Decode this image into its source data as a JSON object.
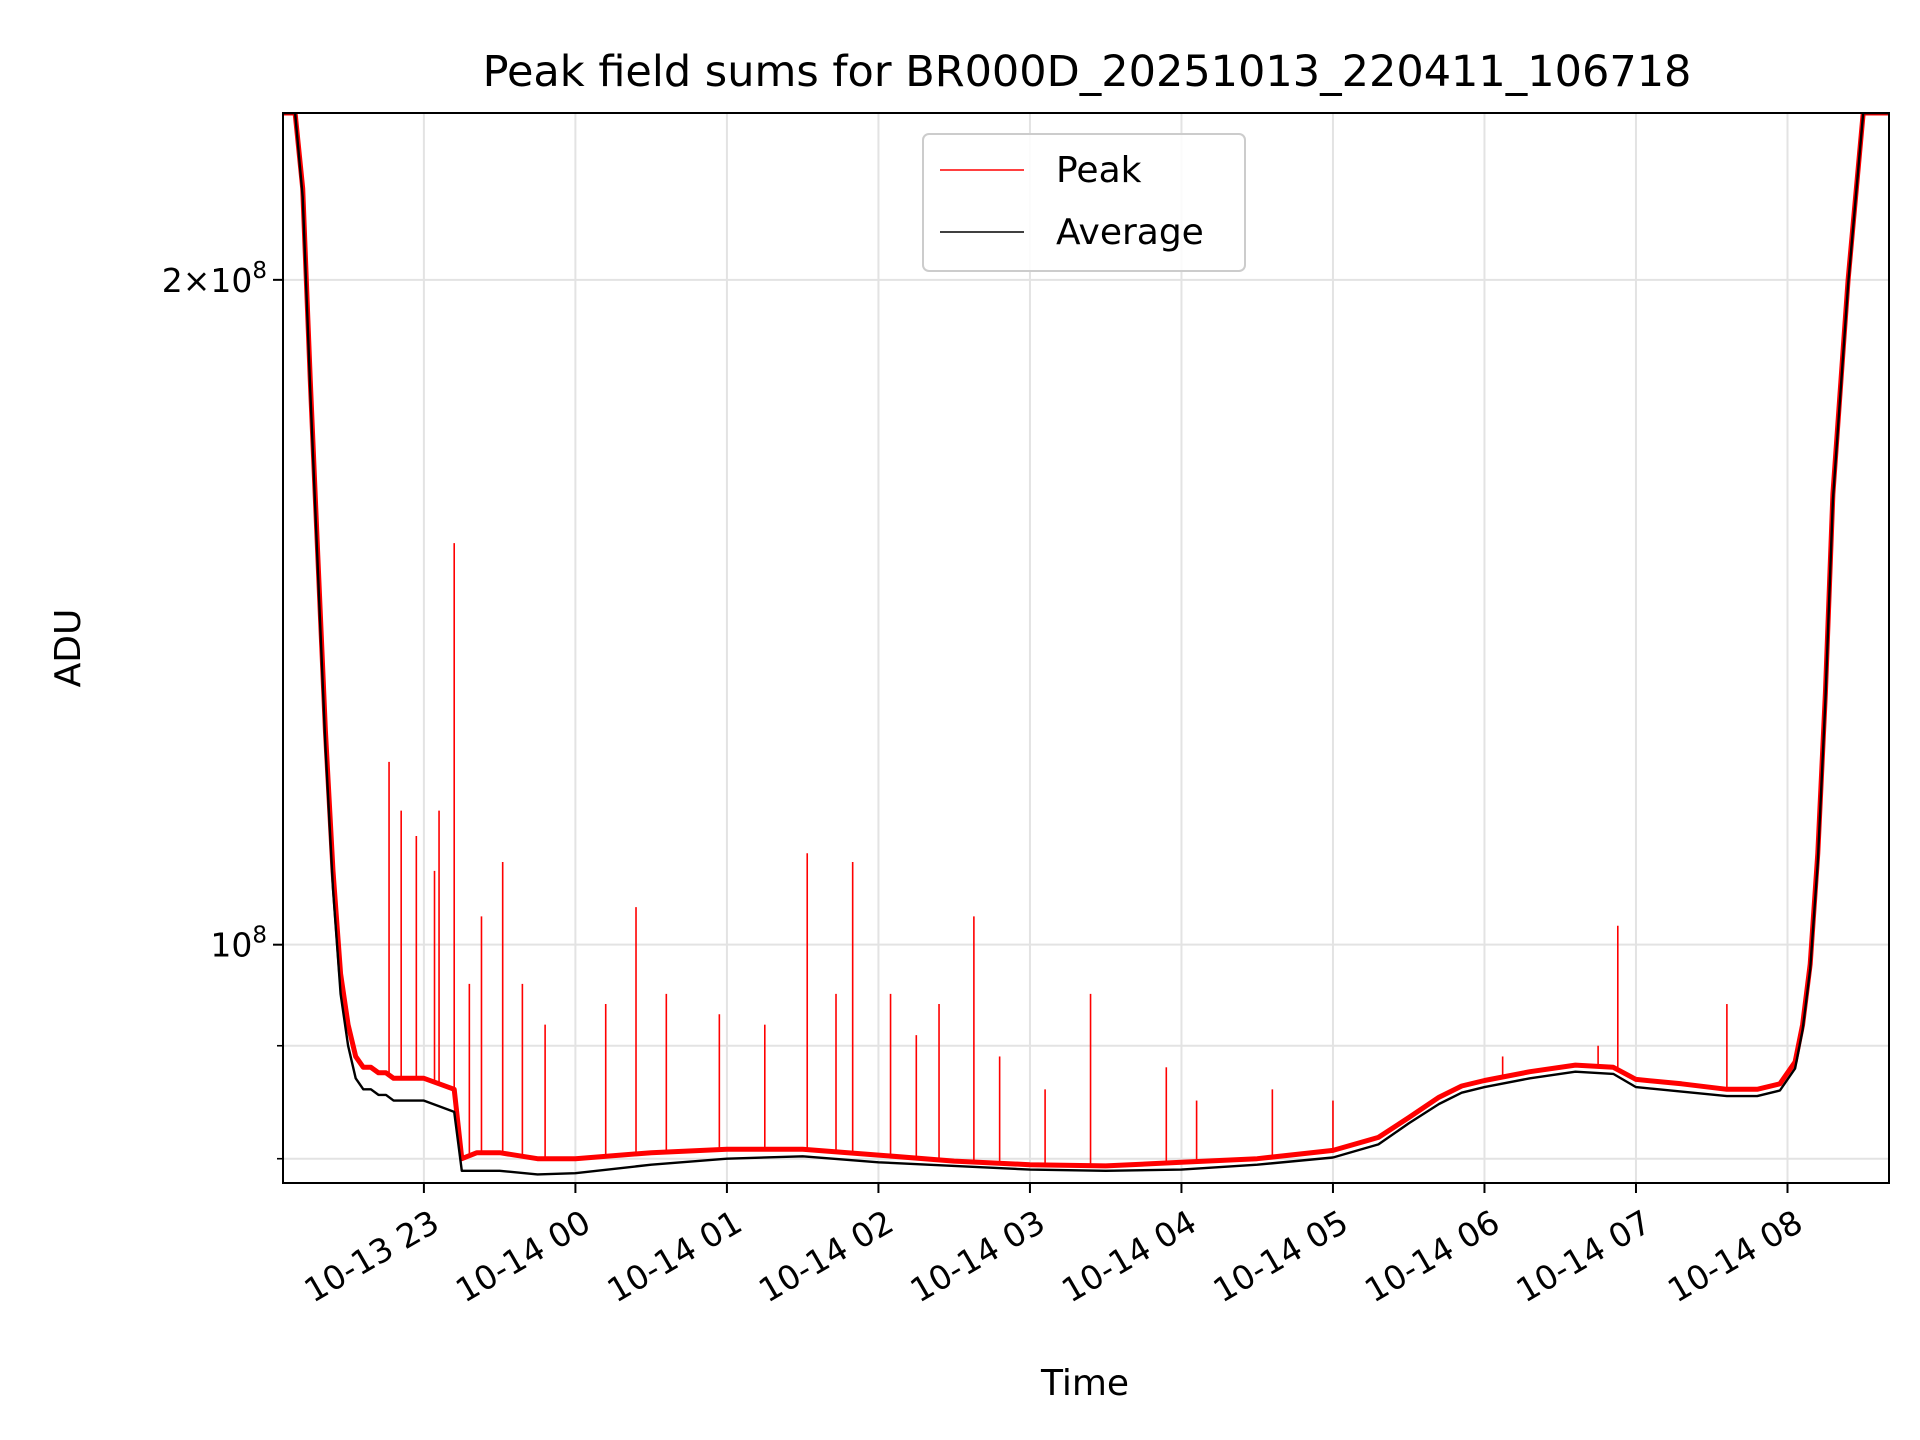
{
  "chart_data": {
    "type": "line",
    "title": "Peak field sums for BR000D_20251013_220411_106718",
    "xlabel": "Time",
    "ylabel": "ADU",
    "yscale": "log",
    "ylim": [
      78000000,
      238000000
    ],
    "xlim_hours": [
      22.07,
      8.67
    ],
    "grid": true,
    "legend_position": "top-center",
    "x_ticks": [
      {
        "label": "10-13 23",
        "hour": 23
      },
      {
        "label": "10-14 00",
        "hour": 24
      },
      {
        "label": "10-14 01",
        "hour": 25
      },
      {
        "label": "10-14 02",
        "hour": 26
      },
      {
        "label": "10-14 03",
        "hour": 27
      },
      {
        "label": "10-14 04",
        "hour": 28
      },
      {
        "label": "10-14 05",
        "hour": 29
      },
      {
        "label": "10-14 06",
        "hour": 30
      },
      {
        "label": "10-14 07",
        "hour": 31
      },
      {
        "label": "10-14 08",
        "hour": 32
      }
    ],
    "y_major_ticks": [
      {
        "value": 100000000,
        "mantissa": "",
        "exponent": "8"
      },
      {
        "value": 200000000,
        "mantissa": "2",
        "exponent": "8"
      }
    ],
    "y_minor_ticks": [
      80000000,
      90000000
    ],
    "series": [
      {
        "name": "Peak",
        "color": "#ff0000",
        "hours": [
          22.07,
          22.15,
          22.2,
          22.25,
          22.3,
          22.35,
          22.4,
          22.45,
          22.5,
          22.55,
          22.6,
          22.65,
          22.7,
          22.75,
          22.8,
          22.85,
          22.9,
          22.95,
          23.0,
          23.1,
          23.2,
          23.25,
          23.35,
          23.5,
          23.75,
          24.0,
          24.5,
          25.0,
          25.5,
          26.0,
          26.5,
          27.0,
          27.5,
          28.0,
          28.5,
          29.0,
          29.3,
          29.5,
          29.7,
          29.85,
          30.0,
          30.3,
          30.6,
          30.85,
          31.0,
          31.3,
          31.6,
          31.8,
          31.95,
          32.05,
          32.1,
          32.15,
          32.2,
          32.25,
          32.3,
          32.4,
          32.5,
          32.67
        ],
        "values": [
          238000000,
          238000000,
          220000000,
          180000000,
          150000000,
          125000000,
          108000000,
          97000000,
          92000000,
          89000000,
          88000000,
          88000000,
          87500000,
          87500000,
          87000000,
          87000000,
          87000000,
          87000000,
          87000000,
          86500000,
          86000000,
          80000000,
          80500000,
          80500000,
          80000000,
          80000000,
          80500000,
          80800000,
          80800000,
          80300000,
          79800000,
          79500000,
          79400000,
          79700000,
          80000000,
          80700000,
          81800000,
          83500000,
          85300000,
          86300000,
          86800000,
          87600000,
          88200000,
          88000000,
          86900000,
          86500000,
          86000000,
          86000000,
          86500000,
          88500000,
          92000000,
          98000000,
          110000000,
          130000000,
          160000000,
          200000000,
          238000000,
          238000000
        ]
      },
      {
        "name": "Average",
        "color": "#000000",
        "hours": [
          22.07,
          22.15,
          22.2,
          22.25,
          22.3,
          22.35,
          22.4,
          22.45,
          22.5,
          22.55,
          22.6,
          22.65,
          22.7,
          22.75,
          22.8,
          22.85,
          22.9,
          22.95,
          23.0,
          23.1,
          23.2,
          23.25,
          23.35,
          23.5,
          23.75,
          24.0,
          24.5,
          25.0,
          25.5,
          26.0,
          26.5,
          27.0,
          27.5,
          28.0,
          28.5,
          29.0,
          29.3,
          29.5,
          29.7,
          29.85,
          30.0,
          30.3,
          30.6,
          30.85,
          31.0,
          31.3,
          31.6,
          31.8,
          31.95,
          32.05,
          32.1,
          32.15,
          32.2,
          32.25,
          32.3,
          32.4,
          32.5,
          32.67
        ],
        "values": [
          238000000,
          238000000,
          218000000,
          178000000,
          148000000,
          123000000,
          106000000,
          95000000,
          90000000,
          87000000,
          86000000,
          86000000,
          85500000,
          85500000,
          85000000,
          85000000,
          85000000,
          85000000,
          85000000,
          84500000,
          84000000,
          79000000,
          79000000,
          79000000,
          78700000,
          78800000,
          79500000,
          80000000,
          80200000,
          79700000,
          79400000,
          79100000,
          79000000,
          79100000,
          79500000,
          80100000,
          81200000,
          83000000,
          84700000,
          85700000,
          86200000,
          87000000,
          87600000,
          87400000,
          86200000,
          85800000,
          85400000,
          85400000,
          85900000,
          87900000,
          91500000,
          97500000,
          109000000,
          129000000,
          159000000,
          199000000,
          238000000,
          238000000
        ]
      }
    ],
    "peak_spikes": [
      {
        "hour": 22.77,
        "value": 121000000
      },
      {
        "hour": 22.85,
        "value": 115000000
      },
      {
        "hour": 22.95,
        "value": 112000000
      },
      {
        "hour": 23.07,
        "value": 108000000
      },
      {
        "hour": 23.1,
        "value": 115000000
      },
      {
        "hour": 23.2,
        "value": 152000000
      },
      {
        "hour": 23.3,
        "value": 96000000
      },
      {
        "hour": 23.38,
        "value": 103000000
      },
      {
        "hour": 23.52,
        "value": 109000000
      },
      {
        "hour": 23.65,
        "value": 96000000
      },
      {
        "hour": 23.8,
        "value": 92000000
      },
      {
        "hour": 24.2,
        "value": 94000000
      },
      {
        "hour": 24.4,
        "value": 104000000
      },
      {
        "hour": 24.6,
        "value": 95000000
      },
      {
        "hour": 24.95,
        "value": 93000000
      },
      {
        "hour": 25.25,
        "value": 92000000
      },
      {
        "hour": 25.53,
        "value": 110000000
      },
      {
        "hour": 25.72,
        "value": 95000000
      },
      {
        "hour": 25.83,
        "value": 109000000
      },
      {
        "hour": 26.08,
        "value": 95000000
      },
      {
        "hour": 26.25,
        "value": 91000000
      },
      {
        "hour": 26.4,
        "value": 94000000
      },
      {
        "hour": 26.63,
        "value": 103000000
      },
      {
        "hour": 26.8,
        "value": 89000000
      },
      {
        "hour": 27.1,
        "value": 86000000
      },
      {
        "hour": 27.4,
        "value": 95000000
      },
      {
        "hour": 27.9,
        "value": 88000000
      },
      {
        "hour": 28.1,
        "value": 85000000
      },
      {
        "hour": 28.6,
        "value": 86000000
      },
      {
        "hour": 29.0,
        "value": 85000000
      },
      {
        "hour": 30.12,
        "value": 89000000
      },
      {
        "hour": 30.75,
        "value": 90000000
      },
      {
        "hour": 30.88,
        "value": 102000000
      },
      {
        "hour": 31.6,
        "value": 94000000
      }
    ]
  }
}
